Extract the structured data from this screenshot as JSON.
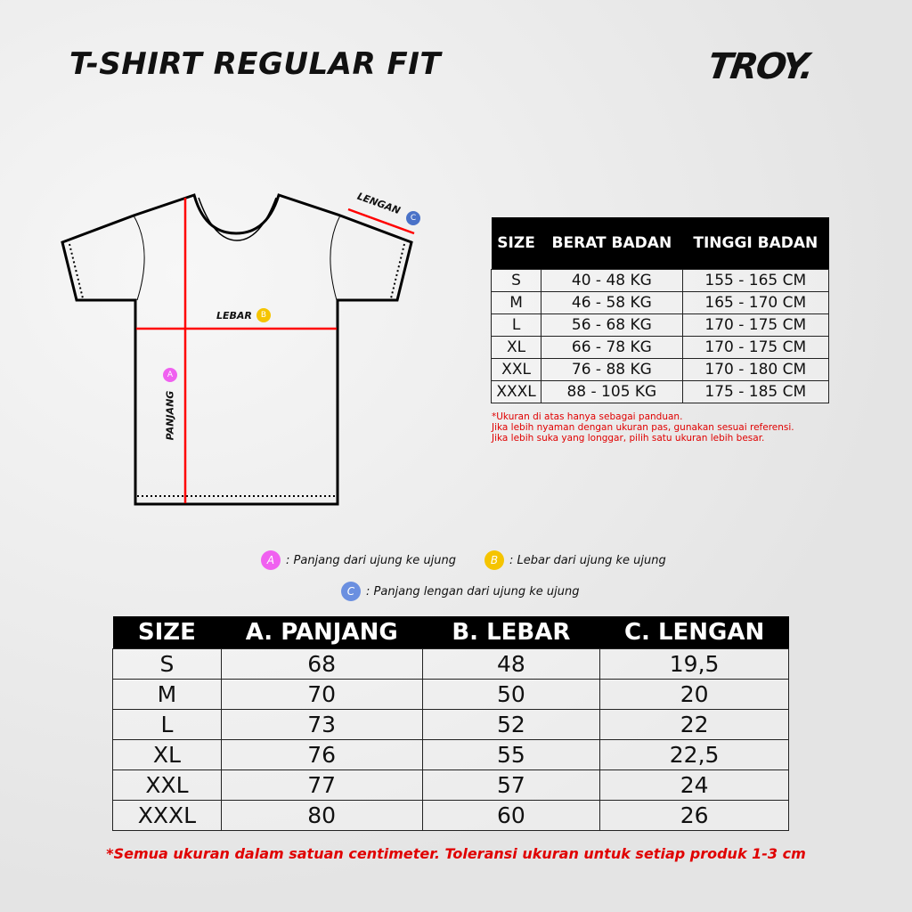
{
  "title": "T-SHIRT REGULAR FIT",
  "brand": "TROY.",
  "diagram": {
    "lengan": "LENGAN",
    "lebar": "LEBAR",
    "panjang": "PANJANG",
    "badge_a": "A",
    "badge_b": "B",
    "badge_c": "C"
  },
  "colors": {
    "measure_line": "#ff0000",
    "badge_a": "#f060f0",
    "badge_b": "#f5c400",
    "badge_c": "#4a72c8",
    "note": "#e00000"
  },
  "body_table": {
    "headers": [
      "SIZE",
      "BERAT BADAN",
      "TINGGI BADAN"
    ],
    "rows": [
      [
        "S",
        "40 - 48 KG",
        "155 - 165 CM"
      ],
      [
        "M",
        "46 - 58 KG",
        "165 - 170 CM"
      ],
      [
        "L",
        "56 - 68 KG",
        "170 - 175 CM"
      ],
      [
        "XL",
        "66 - 78 KG",
        "170 - 175 CM"
      ],
      [
        "XXL",
        "76 - 88 KG",
        "170 - 180 CM"
      ],
      [
        "XXXL",
        "88 - 105 KG",
        "175 - 185 CM"
      ]
    ]
  },
  "notes": [
    "*Ukuran di atas hanya sebagai panduan.",
    "Jika lebih nyaman dengan ukuran pas, gunakan sesuai referensi.",
    "Jika lebih suka yang longgar, pilih satu ukuran lebih besar."
  ],
  "legend": [
    {
      "badge": "A",
      "text": ": Panjang dari ujung ke ujung"
    },
    {
      "badge": "B",
      "text": ": Lebar dari ujung ke ujung"
    },
    {
      "badge": "C",
      "text": ": Panjang lengan dari ujung ke ujung"
    }
  ],
  "size_table": {
    "headers": [
      "SIZE",
      "A. PANJANG",
      "B. LEBAR",
      "C. LENGAN"
    ],
    "rows": [
      [
        "S",
        "68",
        "48",
        "19,5"
      ],
      [
        "M",
        "70",
        "50",
        "20"
      ],
      [
        "L",
        "73",
        "52",
        "22"
      ],
      [
        "XL",
        "76",
        "55",
        "22,5"
      ],
      [
        "XXL",
        "77",
        "57",
        "24"
      ],
      [
        "XXXL",
        "80",
        "60",
        "26"
      ]
    ]
  },
  "footnote": "*Semua ukuran dalam satuan centimeter. Toleransi ukuran untuk setiap produk 1-3 cm"
}
